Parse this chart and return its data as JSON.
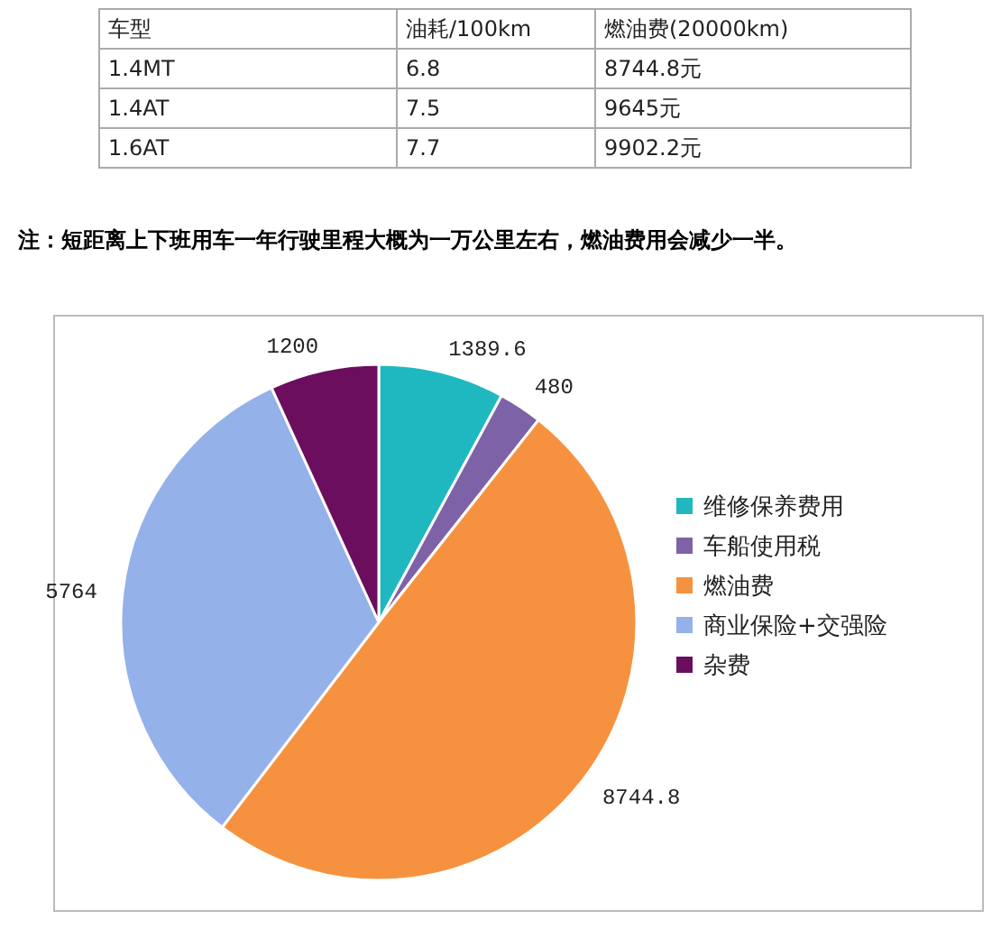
{
  "chart_data": [
    {
      "type": "other",
      "annotations": [
        "车型",
        "油耗/100km",
        "燃油费(20000km)",
        "1.4MT",
        "6.8",
        "8744.8元",
        "1.4AT",
        "7.5",
        "9645元",
        "1.6AT",
        "7.7",
        "9902.2元"
      ]
    },
    {
      "type": "pie",
      "annotations": [
        "注：短距离上下班用车一年行驶里程大概为一万公里左右，燃油费用会减少一半。"
      ],
      "categories": [
        "维修保养费用",
        "车船使用税",
        "燃油费",
        "商业保险+交强险",
        "杂费"
      ],
      "values": [
        1389.6,
        480,
        8744.8,
        5764,
        1200
      ],
      "colors": [
        "#1fb8c0",
        "#7e62a8",
        "#f6923f",
        "#95b1ea",
        "#6b0e5e"
      ],
      "data_labels": true,
      "legend": "right"
    }
  ]
}
